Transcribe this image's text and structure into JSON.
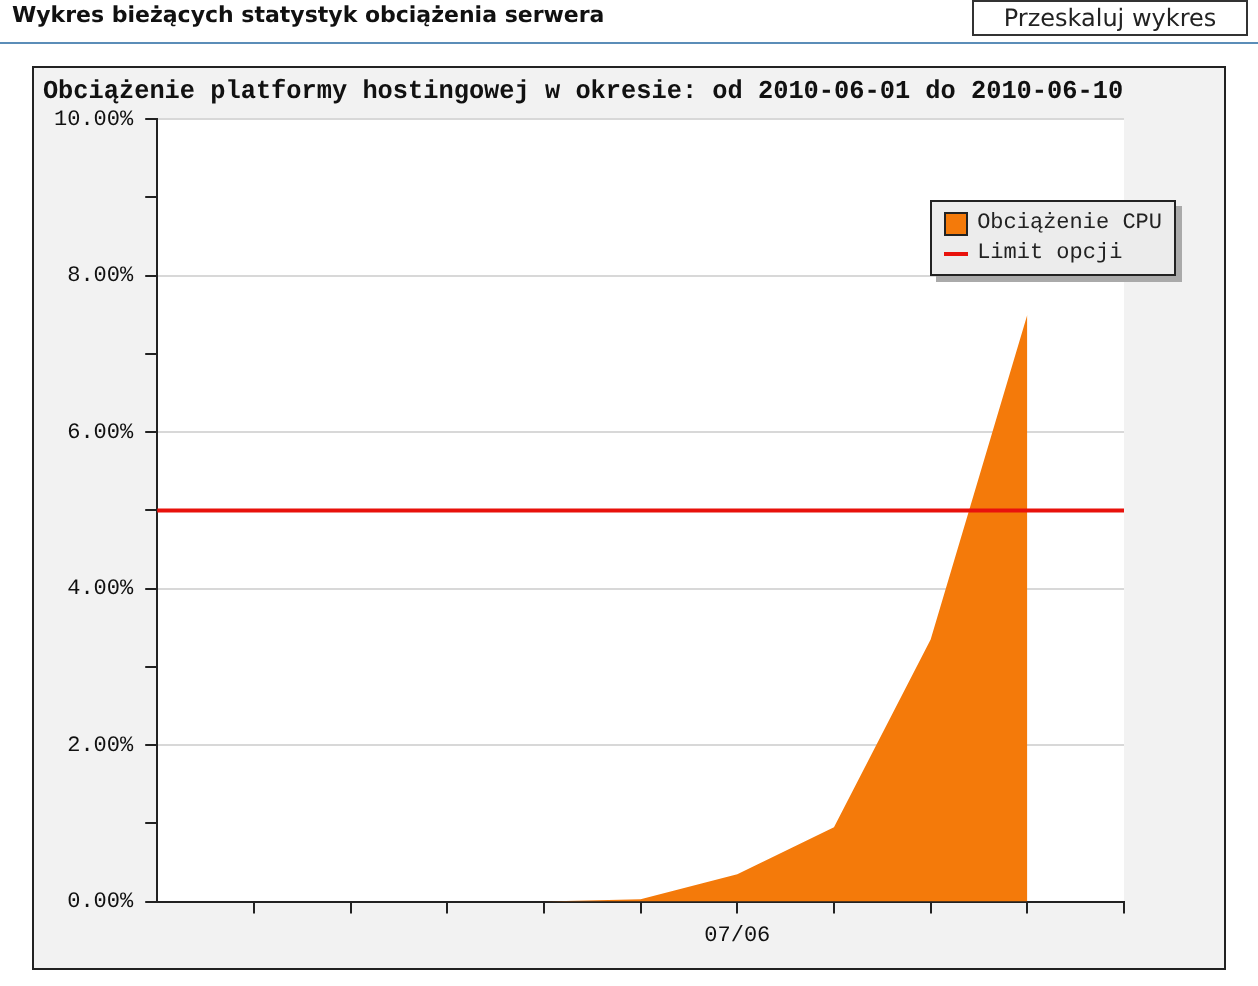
{
  "chart_data": {
    "type": "area",
    "title": "Obciążenie platformy hostingowej w okresie: od 2010-06-01 do 2010-06-10",
    "annotations": [
      "Wykres bieżących statystyk obciążenia serwera",
      "Przeskaluj wykres"
    ],
    "categories": [
      null,
      null,
      null,
      null,
      null,
      null,
      "07/06",
      null,
      null,
      null,
      null
    ],
    "series": [
      {
        "name": "Obciążenie CPU",
        "color": "#f47a0a",
        "values": [
          0,
          0,
          0,
          0,
          0,
          0.03,
          0.35,
          0.95,
          3.35,
          7.5,
          null
        ]
      }
    ],
    "ylim": [
      0,
      10
    ],
    "yticks": [
      {
        "value": 0,
        "label": "0.00%"
      },
      {
        "value": 1,
        "label": null
      },
      {
        "value": 2,
        "label": "2.00%"
      },
      {
        "value": 3,
        "label": null
      },
      {
        "value": 4,
        "label": "4.00%"
      },
      {
        "value": 5,
        "label": null
      },
      {
        "value": 6,
        "label": "6.00%"
      },
      {
        "value": 7,
        "label": null
      },
      {
        "value": 8,
        "label": "8.00%"
      },
      {
        "value": 9,
        "label": null
      },
      {
        "value": 10,
        "label": "10.00%"
      }
    ],
    "ref_lines": [
      {
        "axis": "y",
        "value": 5,
        "label": "Limit opcji",
        "color": "#e8120c"
      }
    ],
    "grid": "y",
    "legend": "top right"
  }
}
